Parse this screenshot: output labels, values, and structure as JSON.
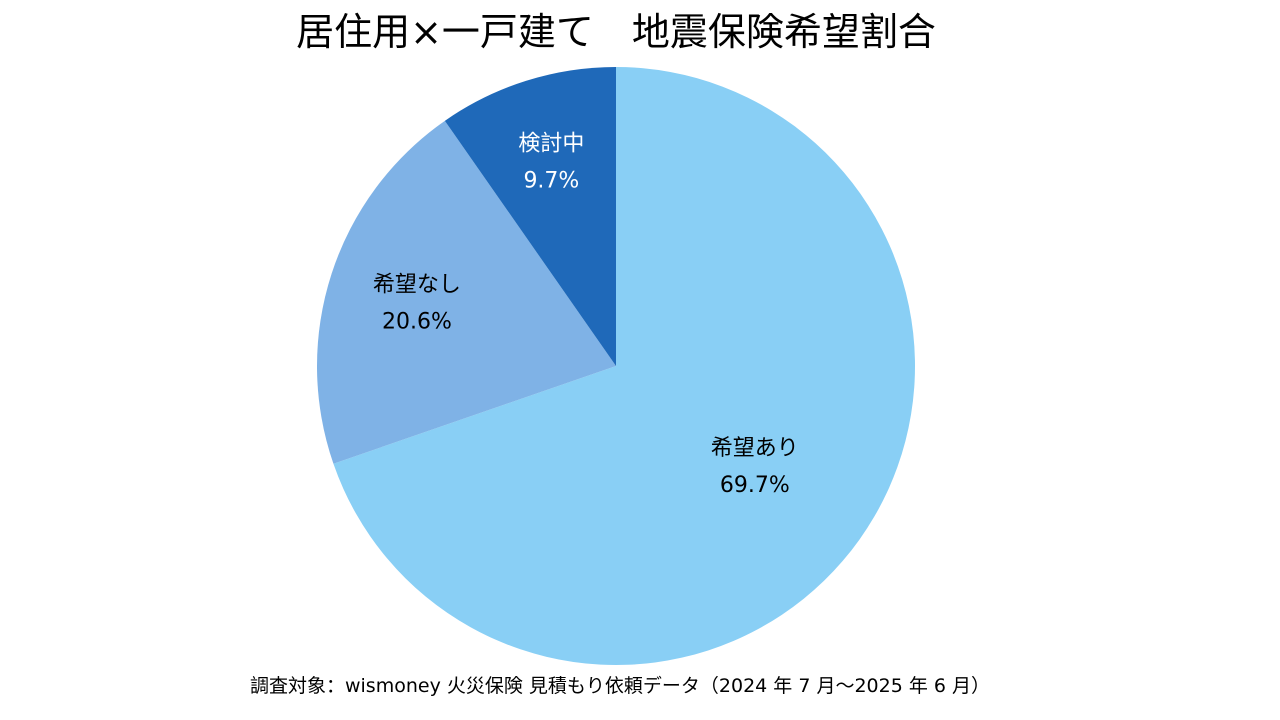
{
  "chart_data": {
    "type": "pie",
    "title": "居住用×一戸建て　地震保険希望割合",
    "start_angle_deg": 0,
    "direction": "clockwise",
    "slices": [
      {
        "label": "希望あり",
        "value": 69.7,
        "value_label": "69.7%",
        "color": "#89CFF5",
        "text_color": "#000000"
      },
      {
        "label": "希望なし",
        "value": 20.6,
        "value_label": "20.6%",
        "color": "#7FB2E6",
        "text_color": "#000000"
      },
      {
        "label": "検討中",
        "value": 9.7,
        "value_label": "9.7%",
        "color": "#1F69B9",
        "text_color": "#FFFFFF"
      }
    ],
    "legend": "none"
  },
  "footnote": "調査対象：wismoney 火災保険 見積もり依頼データ（2024 年 7 月～2025 年 6 月）"
}
